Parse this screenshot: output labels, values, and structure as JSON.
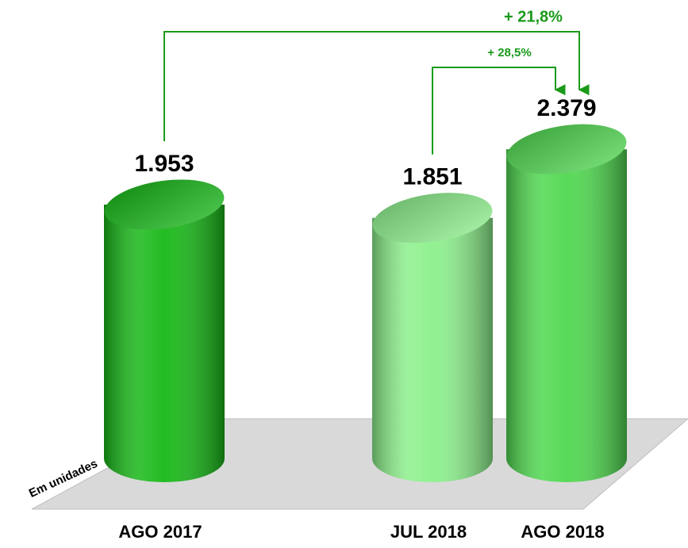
{
  "chart_data": {
    "type": "bar",
    "categories": [
      "AGO 2017",
      "JUL 2018",
      "AGO 2018"
    ],
    "values": [
      1953,
      1851,
      2379
    ],
    "value_labels": [
      "1.953",
      "1.851",
      "2.379"
    ],
    "colors": [
      "#17b817",
      "#8cf08c",
      "#4fd84f"
    ],
    "ylim": [
      0,
      2600
    ],
    "annotations": [
      {
        "text": "+ 21,8%",
        "from": 0,
        "to": 2
      },
      {
        "text": "+ 28,5%",
        "from": 1,
        "to": 2
      }
    ],
    "unit_label": "Em unidades"
  }
}
